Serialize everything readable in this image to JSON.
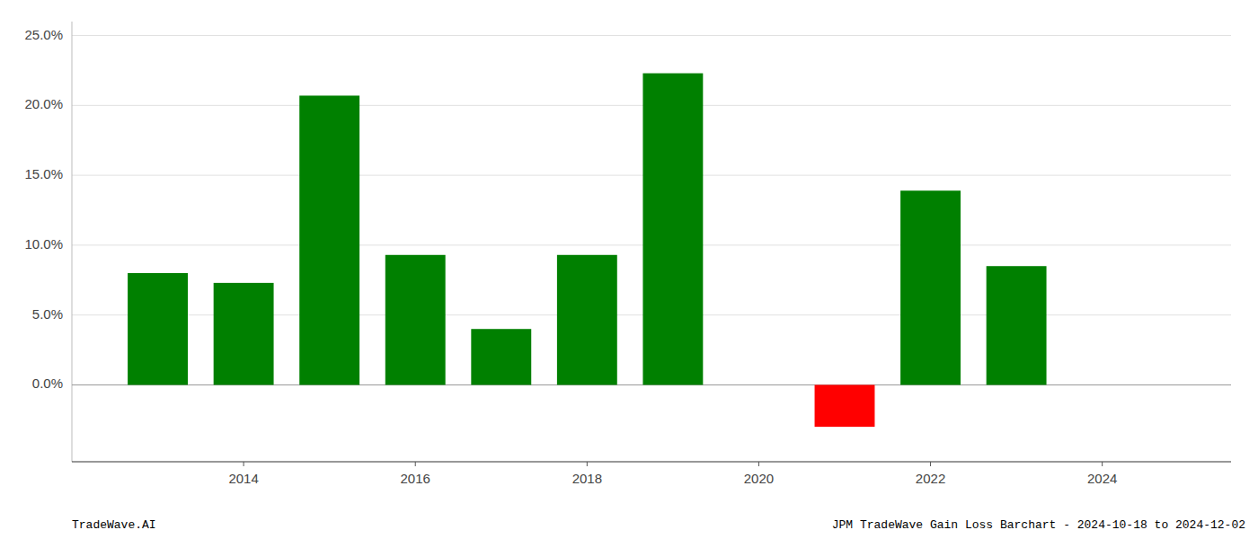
{
  "chart_data": {
    "type": "bar",
    "x": [
      2013,
      2014,
      2015,
      2016,
      2017,
      2018,
      2019,
      2021,
      2022,
      2023
    ],
    "values": [
      0.08,
      0.073,
      0.207,
      0.093,
      0.04,
      0.093,
      0.223,
      -0.03,
      0.139,
      0.085
    ],
    "colors": [
      "#008000",
      "#008000",
      "#008000",
      "#008000",
      "#008000",
      "#008000",
      "#008000",
      "#ff0000",
      "#008000",
      "#008000"
    ],
    "xlim": [
      2012.0,
      2025.5
    ],
    "xticks": [
      2014,
      2016,
      2018,
      2020,
      2022,
      2024
    ],
    "ylim": [
      -0.055,
      0.26
    ],
    "yticks": [
      {
        "value": 0.0,
        "label": "0.0%"
      },
      {
        "value": 0.05,
        "label": "5.0%"
      },
      {
        "value": 0.1,
        "label": "10.0%"
      },
      {
        "value": 0.15,
        "label": "15.0%"
      },
      {
        "value": 0.2,
        "label": "20.0%"
      },
      {
        "value": 0.25,
        "label": "25.0%"
      }
    ],
    "grid": true,
    "annotations": [
      "TradeWave.AI",
      "JPM TradeWave Gain Loss Barchart - 2024-10-18 to 2024-12-02"
    ]
  }
}
